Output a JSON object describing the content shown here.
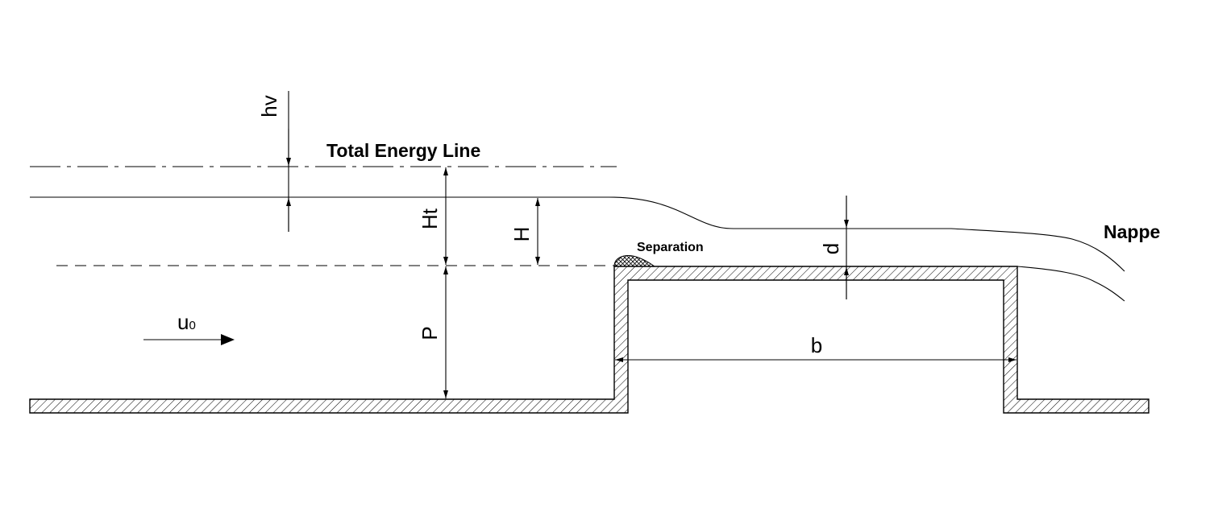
{
  "labels": {
    "hv": "hv",
    "total_energy_line": "Total Energy Line",
    "ht": "Ht",
    "h": "H",
    "p": "P",
    "separation": "Separation",
    "d": "d",
    "nappe": "Nappe",
    "b": "b",
    "u": "u",
    "u_sub": "0"
  },
  "colors": {
    "line": "#000000",
    "background": "#ffffff"
  }
}
